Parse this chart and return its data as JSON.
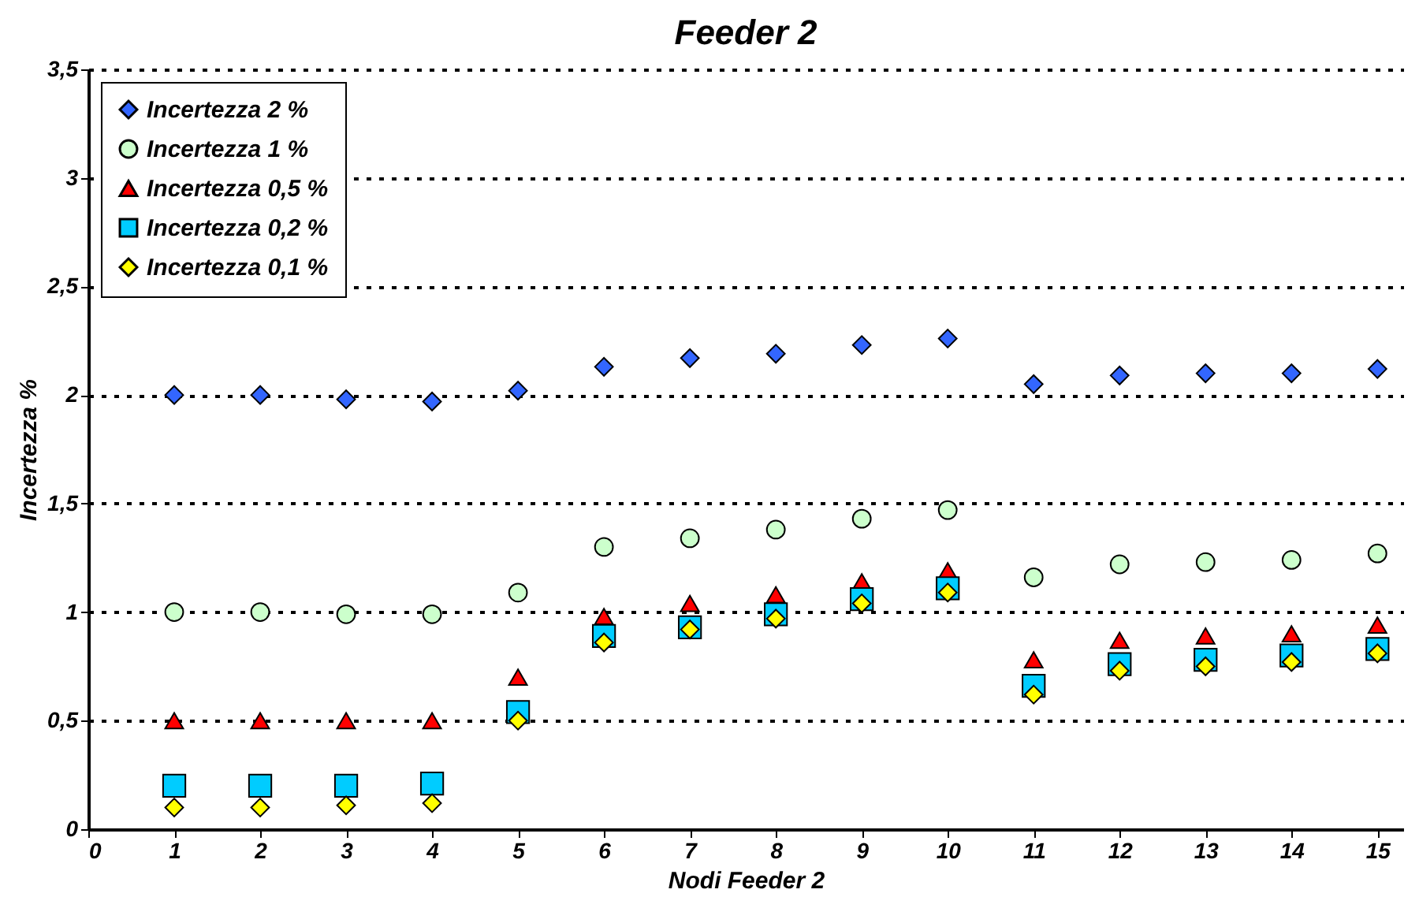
{
  "chart_data": {
    "type": "scatter",
    "title": "Feeder 2",
    "xlabel": "Nodi Feeder 2",
    "ylabel": "Incertezza %",
    "x": [
      1,
      2,
      3,
      4,
      5,
      6,
      7,
      8,
      9,
      10,
      11,
      12,
      13,
      14,
      15
    ],
    "series": [
      {
        "name": "Incertezza 2 %",
        "color": "#3366ff",
        "marker": "diamond",
        "values": [
          2.0,
          2.0,
          1.98,
          1.97,
          2.02,
          2.13,
          2.17,
          2.19,
          2.23,
          2.26,
          2.05,
          2.09,
          2.1,
          2.1,
          2.12
        ]
      },
      {
        "name": "Incertezza 1 %",
        "color": "#ccffcc",
        "marker": "circle",
        "values": [
          1.0,
          1.0,
          0.99,
          0.99,
          1.09,
          1.3,
          1.34,
          1.38,
          1.43,
          1.47,
          1.16,
          1.22,
          1.23,
          1.24,
          1.27
        ]
      },
      {
        "name": "Incertezza 0,5 %",
        "color": "#ff0000",
        "marker": "triangle",
        "values": [
          0.5,
          0.5,
          0.5,
          0.5,
          0.7,
          0.98,
          1.04,
          1.08,
          1.14,
          1.19,
          0.78,
          0.87,
          0.89,
          0.9,
          0.94
        ]
      },
      {
        "name": "Incertezza 0,2 %",
        "color": "#00ccff",
        "marker": "square",
        "values": [
          0.2,
          0.2,
          0.2,
          0.21,
          0.54,
          0.89,
          0.93,
          0.99,
          1.06,
          1.11,
          0.66,
          0.76,
          0.78,
          0.8,
          0.83
        ]
      },
      {
        "name": "Incertezza 0,1 %",
        "color": "#ffff00",
        "marker": "diamond",
        "values": [
          0.1,
          0.1,
          0.11,
          0.12,
          0.5,
          0.86,
          0.92,
          0.97,
          1.04,
          1.09,
          0.62,
          0.73,
          0.75,
          0.77,
          0.81
        ]
      }
    ],
    "xlim": [
      0,
      15.3
    ],
    "xticks": [
      0,
      1,
      2,
      3,
      4,
      5,
      6,
      7,
      8,
      9,
      10,
      11,
      12,
      13,
      14,
      15
    ],
    "ylim": [
      0,
      3.5
    ],
    "yticks": [
      0,
      {
        "value": 0.5,
        "label": "0,5"
      },
      1,
      {
        "value": 1.5,
        "label": "1,5"
      },
      2,
      {
        "value": 2.5,
        "label": "2,5"
      },
      3,
      {
        "value": 3.5,
        "label": "3,5"
      }
    ],
    "grid": "y",
    "legend": "top left"
  }
}
